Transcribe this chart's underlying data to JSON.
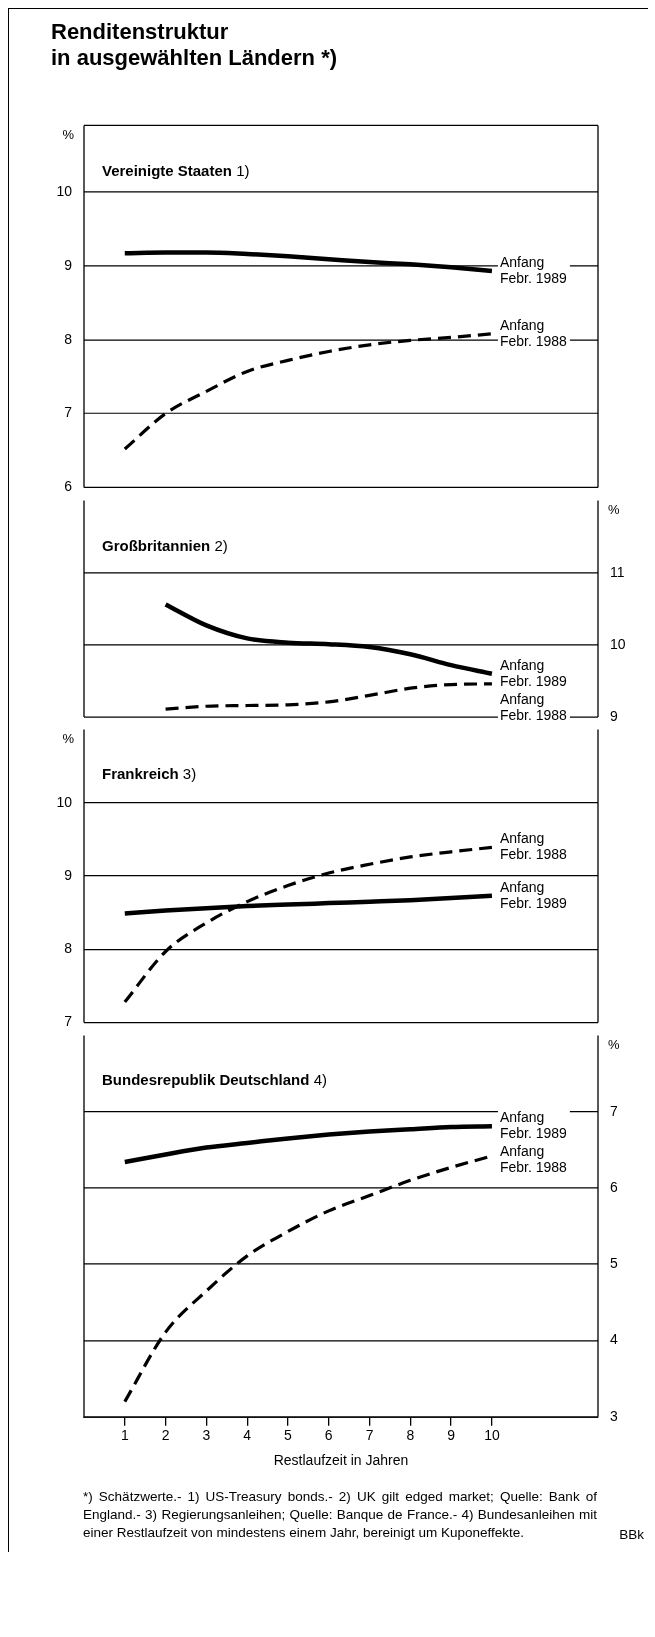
{
  "chart_data": [
    {
      "type": "line",
      "title": "Renditenstruktur\nin ausgewählten Ländern *)",
      "subtitle": "Vereinigte Staaten 1)",
      "ylabel": "%",
      "x": [
        1,
        2,
        3,
        4,
        5,
        6,
        7,
        8,
        9,
        10
      ],
      "xlim": [
        0,
        12.6
      ],
      "ylim": [
        6,
        10.9
      ],
      "yticks": [
        6,
        7,
        8,
        9,
        10
      ],
      "grid": "y",
      "marker": "none",
      "legend": false,
      "tick_labels": "y",
      "series": [
        {
          "name": "Anfang Febr. 1989",
          "color": "#000000",
          "line_style": "solid",
          "values": [
            9.17,
            9.18,
            9.18,
            9.16,
            9.13,
            9.09,
            9.05,
            9.02,
            8.98,
            8.93
          ]
        },
        {
          "name": "Anfang Febr. 1988",
          "color": "#000000",
          "line_style": "dashed",
          "values": [
            6.52,
            7.0,
            7.3,
            7.57,
            7.72,
            7.84,
            7.93,
            7.99,
            8.03,
            8.08
          ]
        }
      ]
    },
    {
      "type": "line",
      "subtitle": "Großbritannien 2)",
      "y2label": "%",
      "x": [
        2,
        3,
        4,
        5,
        6,
        7,
        8,
        9,
        10
      ],
      "xlim": [
        0,
        12.6
      ],
      "y2lim": [
        9,
        12
      ],
      "y2ticks": [
        9,
        10,
        11
      ],
      "grid": "y",
      "marker": "none",
      "legend": false,
      "tick_labels": "y2",
      "series": [
        {
          "name": "Anfang Febr. 1989",
          "color": "#000000",
          "line_style": "solid",
          "axis": "y2",
          "values": [
            10.56,
            10.27,
            10.09,
            10.03,
            10.01,
            9.97,
            9.87,
            9.72,
            9.6
          ]
        },
        {
          "name": "Anfang Febr. 1988",
          "color": "#000000",
          "line_style": "dashed",
          "axis": "y2",
          "values": [
            9.11,
            9.15,
            9.16,
            9.17,
            9.21,
            9.3,
            9.4,
            9.45,
            9.46
          ]
        }
      ]
    },
    {
      "type": "line",
      "subtitle": "Frankreich 3)",
      "ylabel": "%",
      "x": [
        1,
        2,
        3,
        4,
        5,
        6,
        7,
        8,
        9,
        10
      ],
      "xlim": [
        0,
        12.6
      ],
      "ylim": [
        7,
        11
      ],
      "yticks": [
        7,
        8,
        9,
        10
      ],
      "grid": "y",
      "marker": "none",
      "legend": false,
      "tick_labels": "y",
      "series": [
        {
          "name": "Anfang Febr. 1989",
          "color": "#000000",
          "line_style": "solid",
          "values": [
            8.49,
            8.53,
            8.56,
            8.59,
            8.61,
            8.63,
            8.65,
            8.67,
            8.7,
            8.73
          ]
        },
        {
          "name": "Anfang Febr. 1988",
          "color": "#000000",
          "line_style": "dashed",
          "values": [
            7.28,
            7.97,
            8.36,
            8.65,
            8.87,
            9.04,
            9.16,
            9.26,
            9.33,
            9.39
          ]
        }
      ]
    },
    {
      "type": "line",
      "subtitle": "Bundesrepublik Deutschland 4)",
      "y2label": "%",
      "xlabel": "Restlaufzeit in Jahren",
      "x": [
        1,
        2,
        3,
        4,
        5,
        6,
        7,
        8,
        9,
        10
      ],
      "xlim": [
        0,
        12.6
      ],
      "xticks": [
        1,
        2,
        3,
        4,
        5,
        6,
        7,
        8,
        9,
        10
      ],
      "y2lim": [
        3,
        8
      ],
      "y2ticks": [
        3,
        4,
        5,
        6,
        7
      ],
      "grid": "y",
      "marker": "none",
      "legend": false,
      "series": [
        {
          "name": "Anfang Febr. 1989",
          "color": "#000000",
          "line_style": "solid",
          "axis": "y2",
          "values": [
            6.34,
            6.44,
            6.53,
            6.59,
            6.65,
            6.7,
            6.74,
            6.77,
            6.8,
            6.81
          ]
        },
        {
          "name": "Anfang Febr. 1988",
          "color": "#000000",
          "line_style": "dashed",
          "axis": "y2",
          "values": [
            3.2,
            4.11,
            4.65,
            5.11,
            5.43,
            5.7,
            5.9,
            6.1,
            6.27,
            6.42
          ]
        }
      ],
      "annotations": [
        "*) Schätzwerte.- 1) US-Treasury bonds.- 2) UK gilt edged market; Quelle: Bank of England.- 3) Regierungsanleihen; Quelle: Banque de France.- 4) Bundesanleihen mit einer Restlaufzeit von mindestens einem Jahr, bereinigt um Kuponeffekte.",
        "BBk"
      ]
    }
  ]
}
